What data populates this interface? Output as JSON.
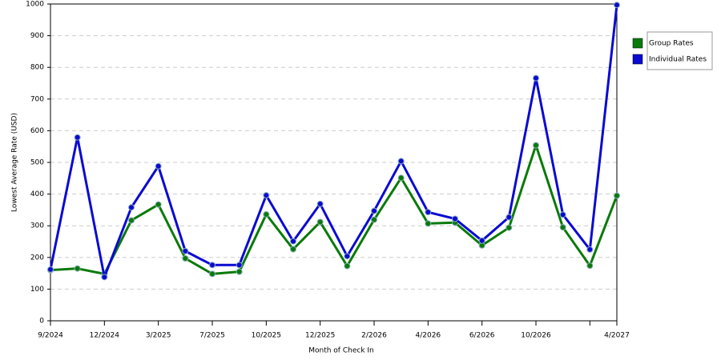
{
  "chart_data": {
    "type": "line",
    "x_label": "Month of Check In",
    "y_label": "Lowest Average Rate (USD)",
    "categories": [
      "9/2024",
      null,
      "12/2024",
      null,
      "3/2025",
      null,
      "7/2025",
      null,
      "10/2025",
      null,
      "12/2025",
      null,
      "2/2026",
      null,
      "4/2026",
      null,
      "6/2026",
      null,
      "10/2026",
      null,
      null,
      "4/2027"
    ],
    "series": [
      {
        "name": "Group Rates",
        "color": "#0a7a0a",
        "values": [
          160,
          165,
          148,
          317,
          367,
          197,
          148,
          155,
          336,
          226,
          312,
          173,
          319,
          451,
          307,
          310,
          238,
          294,
          554,
          295,
          174,
          395
        ]
      },
      {
        "name": "Individual Rates",
        "color": "#0a0ad2",
        "values": [
          162,
          579,
          138,
          358,
          488,
          220,
          176,
          176,
          396,
          251,
          369,
          204,
          347,
          504,
          343,
          322,
          253,
          327,
          766,
          335,
          225,
          997
        ]
      }
    ],
    "ylim": [
      0,
      1000
    ],
    "yticks": [
      0,
      100,
      200,
      300,
      400,
      500,
      600,
      700,
      800,
      900,
      1000
    ],
    "grid": true
  }
}
